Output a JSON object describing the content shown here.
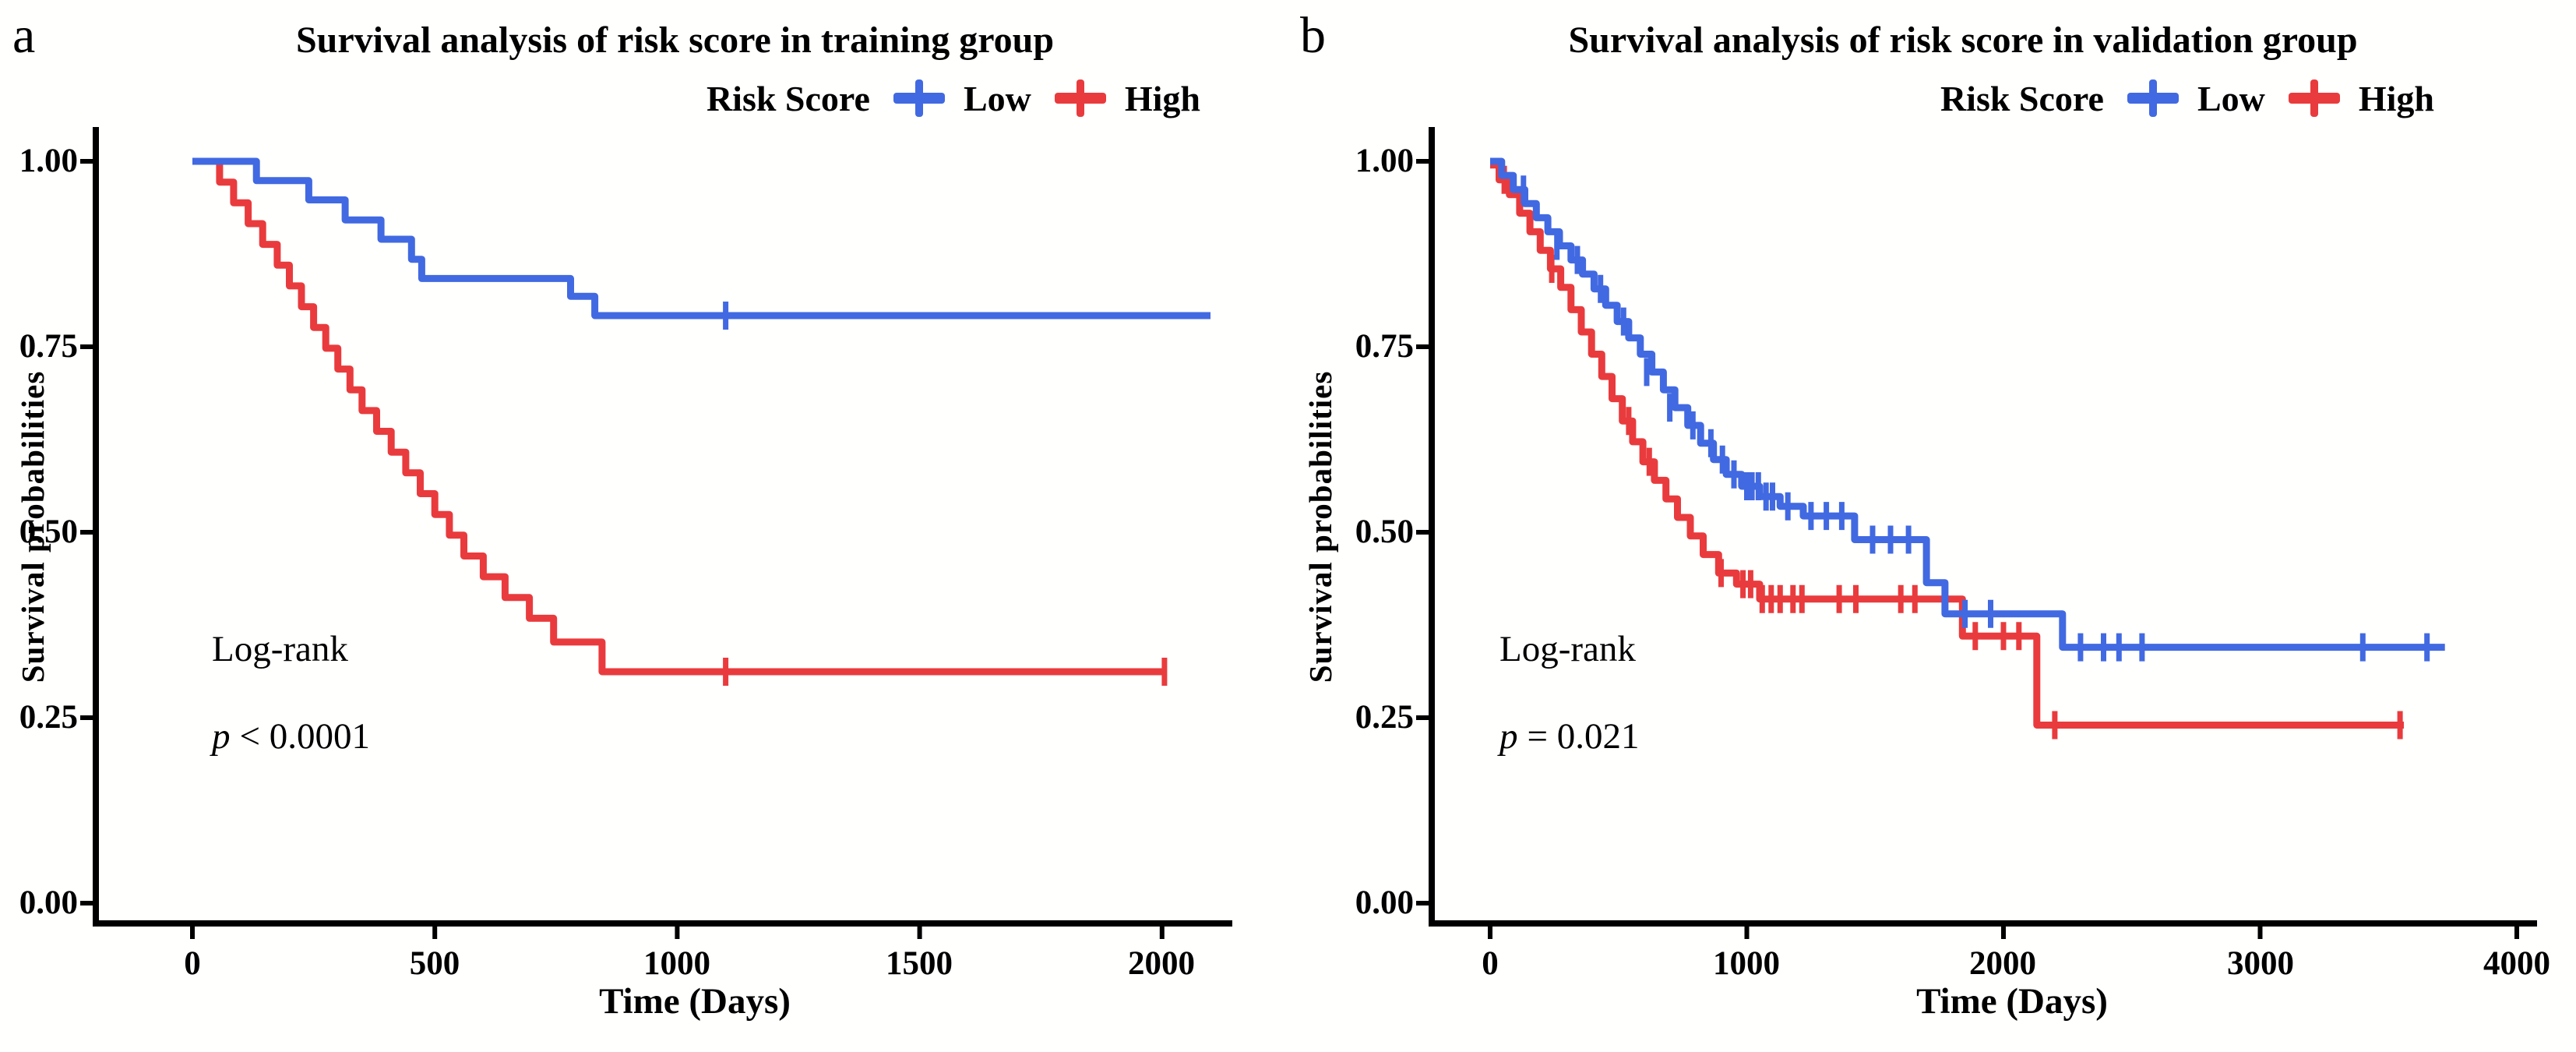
{
  "panels": [
    {
      "label": "a",
      "logrank": "Log-rank",
      "p_symbol": "p",
      "p_rest": "< 0.0001"
    },
    {
      "label": "b",
      "logrank": "Log-rank",
      "p_symbol": "p",
      "p_rest": "= 0.021"
    }
  ],
  "chart_data": [
    {
      "type": "line",
      "subtype": "kaplan-meier-step",
      "title": "Survival analysis of risk score in training group",
      "xlabel": "Time (Days)",
      "ylabel": "Survival probabilities",
      "legend_title": "Risk Score",
      "legend_position": "top-right",
      "grid": false,
      "xlim": [
        0,
        2140
      ],
      "ylim": [
        0,
        1
      ],
      "xticks": [
        0,
        500,
        1000,
        1500,
        2000
      ],
      "xtick_labels": [
        "0",
        "500",
        "1000",
        "1500",
        "2000"
      ],
      "yticks": [
        0,
        0.25,
        0.5,
        0.75,
        1
      ],
      "ytick_labels": [
        "0.00",
        "0.25",
        "0.50",
        "0.75",
        "1.00"
      ],
      "annotation": [
        "Log-rank",
        "p < 0.0001"
      ],
      "series": [
        {
          "name": "Low",
          "color": "#4169E1",
          "end": 2100,
          "steps": [
            [
              0,
              1.0
            ],
            [
              132,
              0.974
            ],
            [
              240,
              0.948
            ],
            [
              315,
              0.921
            ],
            [
              389,
              0.895
            ],
            [
              452,
              0.868
            ],
            [
              473,
              0.842
            ],
            [
              780,
              0.818
            ],
            [
              830,
              0.792
            ]
          ],
          "censored": [
            [
              1100,
              0.792
            ]
          ]
        },
        {
          "name": "High",
          "color": "#E93B3D",
          "end": 2010,
          "steps": [
            [
              0,
              1.0
            ],
            [
              56,
              0.972
            ],
            [
              85,
              0.944
            ],
            [
              115,
              0.916
            ],
            [
              145,
              0.888
            ],
            [
              175,
              0.86
            ],
            [
              200,
              0.832
            ],
            [
              225,
              0.804
            ],
            [
              250,
              0.776
            ],
            [
              275,
              0.748
            ],
            [
              300,
              0.72
            ],
            [
              325,
              0.692
            ],
            [
              350,
              0.664
            ],
            [
              380,
              0.636
            ],
            [
              410,
              0.608
            ],
            [
              440,
              0.58
            ],
            [
              470,
              0.552
            ],
            [
              500,
              0.524
            ],
            [
              530,
              0.496
            ],
            [
              560,
              0.468
            ],
            [
              600,
              0.44
            ],
            [
              645,
              0.412
            ],
            [
              695,
              0.384
            ],
            [
              745,
              0.352
            ],
            [
              845,
              0.312
            ]
          ],
          "censored": [
            [
              1100,
              0.312
            ],
            [
              2005,
              0.312
            ]
          ]
        }
      ]
    },
    {
      "type": "line",
      "subtype": "kaplan-meier-step",
      "title": "Survival analysis of risk score in validation group",
      "xlabel": "Time (Days)",
      "ylabel": "Survival probabilities",
      "legend_title": "Risk Score",
      "legend_position": "top-right",
      "grid": false,
      "xlim": [
        0,
        4070
      ],
      "ylim": [
        0,
        1
      ],
      "xticks": [
        0,
        1000,
        2000,
        3000,
        4000
      ],
      "xtick_labels": [
        "0",
        "1000",
        "2000",
        "3000",
        "4000"
      ],
      "yticks": [
        0,
        0.25,
        0.5,
        0.75,
        1
      ],
      "ytick_labels": [
        "0.00",
        "0.25",
        "0.50",
        "0.75",
        "1.00"
      ],
      "annotation": [
        "Log-rank",
        "p = 0.021"
      ],
      "series": [
        {
          "name": "Low",
          "color": "#4169E1",
          "end": 3720,
          "steps": [
            [
              0,
              1.0
            ],
            [
              45,
              0.981
            ],
            [
              90,
              0.962
            ],
            [
              135,
              0.943
            ],
            [
              180,
              0.924
            ],
            [
              225,
              0.905
            ],
            [
              270,
              0.886
            ],
            [
              315,
              0.867
            ],
            [
              360,
              0.848
            ],
            [
              405,
              0.828
            ],
            [
              450,
              0.806
            ],
            [
              495,
              0.784
            ],
            [
              540,
              0.762
            ],
            [
              585,
              0.74
            ],
            [
              630,
              0.716
            ],
            [
              675,
              0.692
            ],
            [
              720,
              0.668
            ],
            [
              770,
              0.644
            ],
            [
              820,
              0.62
            ],
            [
              870,
              0.598
            ],
            [
              920,
              0.578
            ],
            [
              980,
              0.562
            ],
            [
              1050,
              0.548
            ],
            [
              1130,
              0.535
            ],
            [
              1220,
              0.522
            ],
            [
              1420,
              0.49
            ],
            [
              1700,
              0.432
            ],
            [
              1772,
              0.39
            ],
            [
              2230,
              0.345
            ]
          ],
          "censored": [
            [
              130,
              0.962
            ],
            [
              260,
              0.886
            ],
            [
              340,
              0.867
            ],
            [
              430,
              0.828
            ],
            [
              520,
              0.784
            ],
            [
              610,
              0.716
            ],
            [
              700,
              0.668
            ],
            [
              790,
              0.644
            ],
            [
              860,
              0.62
            ],
            [
              905,
              0.598
            ],
            [
              950,
              0.578
            ],
            [
              1000,
              0.562
            ],
            [
              1020,
              0.562
            ],
            [
              1045,
              0.562
            ],
            [
              1075,
              0.548
            ],
            [
              1100,
              0.548
            ],
            [
              1160,
              0.535
            ],
            [
              1250,
              0.522
            ],
            [
              1310,
              0.522
            ],
            [
              1370,
              0.522
            ],
            [
              1490,
              0.49
            ],
            [
              1560,
              0.49
            ],
            [
              1630,
              0.49
            ],
            [
              1850,
              0.39
            ],
            [
              1950,
              0.39
            ],
            [
              2300,
              0.345
            ],
            [
              2390,
              0.345
            ],
            [
              2450,
              0.345
            ],
            [
              2540,
              0.345
            ],
            [
              3400,
              0.345
            ],
            [
              3650,
              0.345
            ]
          ]
        },
        {
          "name": "High",
          "color": "#E93B3D",
          "end": 3560,
          "steps": [
            [
              0,
              0.995
            ],
            [
              35,
              0.975
            ],
            [
              75,
              0.955
            ],
            [
              115,
              0.93
            ],
            [
              155,
              0.905
            ],
            [
              195,
              0.88
            ],
            [
              235,
              0.855
            ],
            [
              275,
              0.83
            ],
            [
              315,
              0.8
            ],
            [
              355,
              0.77
            ],
            [
              395,
              0.74
            ],
            [
              435,
              0.71
            ],
            [
              475,
              0.68
            ],
            [
              515,
              0.65
            ],
            [
              555,
              0.622
            ],
            [
              595,
              0.595
            ],
            [
              640,
              0.57
            ],
            [
              685,
              0.545
            ],
            [
              730,
              0.52
            ],
            [
              780,
              0.495
            ],
            [
              830,
              0.47
            ],
            [
              890,
              0.445
            ],
            [
              960,
              0.43
            ],
            [
              1050,
              0.41
            ],
            [
              1840,
              0.36
            ],
            [
              2130,
              0.24
            ]
          ],
          "censored": [
            [
              55,
              0.975
            ],
            [
              240,
              0.855
            ],
            [
              540,
              0.65
            ],
            [
              620,
              0.595
            ],
            [
              900,
              0.445
            ],
            [
              985,
              0.43
            ],
            [
              1015,
              0.43
            ],
            [
              1060,
              0.41
            ],
            [
              1095,
              0.41
            ],
            [
              1130,
              0.41
            ],
            [
              1180,
              0.41
            ],
            [
              1215,
              0.41
            ],
            [
              1360,
              0.41
            ],
            [
              1425,
              0.41
            ],
            [
              1600,
              0.41
            ],
            [
              1655,
              0.41
            ],
            [
              1890,
              0.36
            ],
            [
              2000,
              0.36
            ],
            [
              2060,
              0.36
            ],
            [
              2200,
              0.24
            ],
            [
              3545,
              0.24
            ]
          ]
        }
      ]
    }
  ]
}
